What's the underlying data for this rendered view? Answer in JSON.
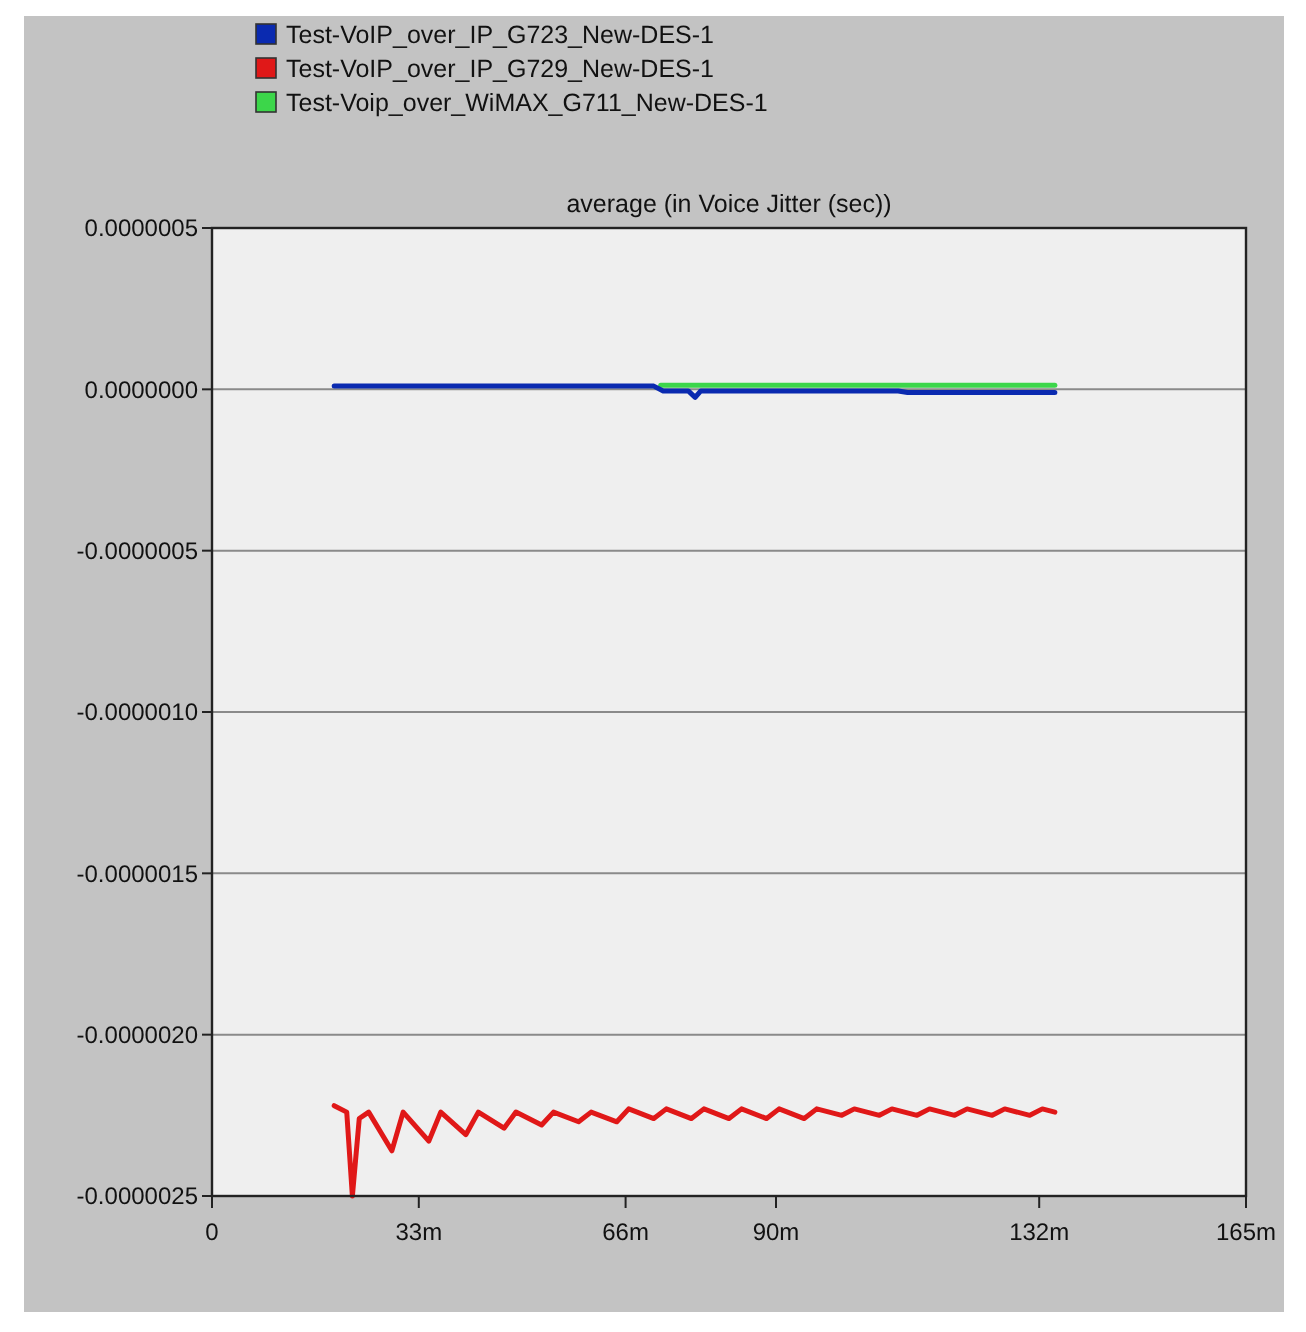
{
  "chart_data": {
    "type": "line",
    "title": "average (in Voice Jitter (sec))",
    "legend": "top",
    "grid": "y",
    "line_style": "solid",
    "xlim": [
      0,
      165
    ],
    "xticks": [
      0,
      {
        "value": 33,
        "label": "33m"
      },
      {
        "value": 66,
        "label": "66m"
      },
      {
        "value": 90,
        "label": "90m"
      },
      {
        "value": 132,
        "label": "132m"
      },
      {
        "value": 165,
        "label": "165m"
      }
    ],
    "ylim": [
      -2.5e-06,
      5e-07
    ],
    "yticks": [
      {
        "value": 5e-07,
        "label": "0.0000005"
      },
      {
        "value": 0,
        "label": "0.0000000"
      },
      {
        "value": -5e-07,
        "label": "-0.0000005"
      },
      {
        "value": -1e-06,
        "label": "-0.0000010"
      },
      {
        "value": -1.5e-06,
        "label": "-0.0000015"
      },
      {
        "value": -2e-06,
        "label": "-0.0000020"
      },
      {
        "value": -2.5e-06,
        "label": "-0.0000025"
      }
    ],
    "series": [
      {
        "name": "Test-VoIP_over_IP_G723_New-DES-1",
        "color": "#0a2ab0",
        "x": [
          19.5,
          70.5,
          72,
          76,
          77.1,
          78,
          109.5,
          111,
          134.5
        ],
        "values": [
          1e-08,
          1e-08,
          -5e-09,
          -5e-09,
          -2.5e-08,
          -5e-09,
          -5e-09,
          -1e-08,
          -1e-08
        ]
      },
      {
        "name": "Test-VoIP_over_IP_G729_New-DES-1",
        "color": "#e01818",
        "x": [
          19.5,
          21.5,
          22.4,
          23.5,
          25,
          28.7,
          30.5,
          34.6,
          36.5,
          40.5,
          42.5,
          46.6,
          48.5,
          52.6,
          54.5,
          58.5,
          60.5,
          64.6,
          66.5,
          70.5,
          72.5,
          76.5,
          78.5,
          82.5,
          84.5,
          88.5,
          90.5,
          94.5,
          96.5,
          100.5,
          102.5,
          106.5,
          108.5,
          112.5,
          114.5,
          118.5,
          120.5,
          124.5,
          126.5,
          130.5,
          132.5,
          134.5
        ],
        "values": [
          -2.22e-06,
          -2.24e-06,
          -2.5e-06,
          -2.26e-06,
          -2.24e-06,
          -2.36e-06,
          -2.24e-06,
          -2.33e-06,
          -2.24e-06,
          -2.31e-06,
          -2.24e-06,
          -2.29e-06,
          -2.24e-06,
          -2.28e-06,
          -2.24e-06,
          -2.27e-06,
          -2.24e-06,
          -2.27e-06,
          -2.23e-06,
          -2.26e-06,
          -2.23e-06,
          -2.26e-06,
          -2.23e-06,
          -2.26e-06,
          -2.23e-06,
          -2.26e-06,
          -2.23e-06,
          -2.26e-06,
          -2.23e-06,
          -2.25e-06,
          -2.23e-06,
          -2.25e-06,
          -2.23e-06,
          -2.25e-06,
          -2.23e-06,
          -2.25e-06,
          -2.23e-06,
          -2.25e-06,
          -2.23e-06,
          -2.25e-06,
          -2.23e-06,
          -2.24e-06
        ]
      },
      {
        "name": "Test-Voip_over_WiMAX_G711_New-DES-1",
        "color": "#3cd64a",
        "x": [
          71.6,
          134.5
        ],
        "values": [
          1.3e-08,
          1.3e-08
        ]
      }
    ]
  }
}
